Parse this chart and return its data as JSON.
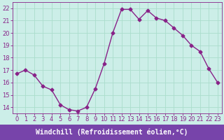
{
  "x": [
    0,
    1,
    2,
    3,
    4,
    5,
    6,
    7,
    8,
    9,
    10,
    11,
    12,
    13,
    14,
    15,
    16,
    17,
    18,
    19,
    20,
    21,
    22,
    23
  ],
  "y": [
    16.7,
    17.0,
    16.6,
    15.7,
    15.4,
    14.2,
    13.8,
    13.7,
    14.0,
    15.5,
    17.5,
    20.0,
    21.9,
    21.9,
    21.1,
    21.8,
    21.2,
    21.0,
    20.4,
    19.8,
    19.0,
    18.5,
    17.1,
    16.0
  ],
  "line_color": "#882288",
  "marker": "D",
  "markersize": 2.5,
  "linewidth": 1.0,
  "bg_color": "#cceee8",
  "grid_color": "#aaddcc",
  "xlabel": "Windchill (Refroidissement éolien,°C)",
  "xlabel_fontsize": 7,
  "xlabel_bg": "#7744aa",
  "ylabel_ticks": [
    14,
    15,
    16,
    17,
    18,
    19,
    20,
    21,
    22
  ],
  "xticks": [
    0,
    1,
    2,
    3,
    4,
    5,
    6,
    7,
    8,
    9,
    10,
    11,
    12,
    13,
    14,
    15,
    16,
    17,
    18,
    19,
    20,
    21,
    22,
    23
  ],
  "ylim": [
    13.5,
    22.5
  ],
  "xlim": [
    -0.5,
    23.5
  ],
  "tick_fontsize": 6,
  "tick_color": "#882288",
  "spine_color": "#882288"
}
